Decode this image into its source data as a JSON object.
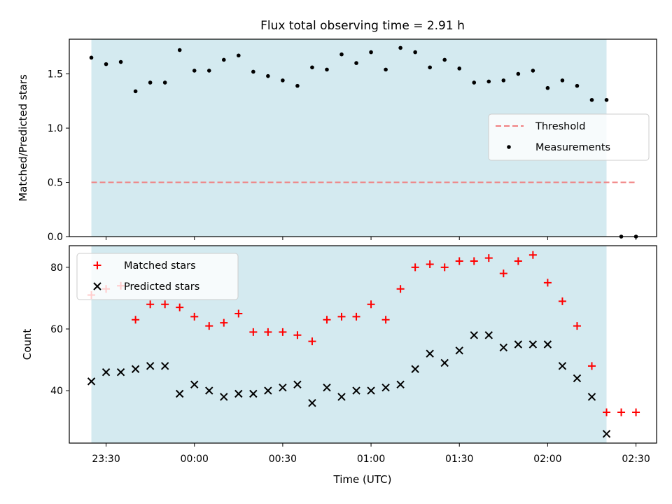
{
  "chart_data": [
    {
      "type": "scatter",
      "title": "Flux total observing time = 2.91 h",
      "xlabel": "",
      "ylabel": "Matched/Predicted stars",
      "ylim": [
        0,
        1.82
      ],
      "yticks": [
        "0.0",
        "0.5",
        "1.0",
        "1.5"
      ],
      "shaded_interval": [
        "23:25",
        "02:20"
      ],
      "shade_color": "#d4eaf0",
      "legend_position": "center-right",
      "series": [
        {
          "name": "Threshold",
          "style": "dashed-line",
          "color": "#f08080",
          "x": [
            "23:25",
            "02:30"
          ],
          "y": [
            0.5,
            0.5
          ]
        },
        {
          "name": "Measurements",
          "style": "dot",
          "color": "#000000",
          "x": [
            "23:25",
            "23:30",
            "23:35",
            "23:40",
            "23:45",
            "23:50",
            "23:55",
            "00:00",
            "00:05",
            "00:10",
            "00:15",
            "00:20",
            "00:25",
            "00:30",
            "00:35",
            "00:40",
            "00:45",
            "00:50",
            "00:55",
            "01:00",
            "01:05",
            "01:10",
            "01:15",
            "01:20",
            "01:25",
            "01:30",
            "01:35",
            "01:40",
            "01:45",
            "01:50",
            "01:55",
            "02:00",
            "02:05",
            "02:10",
            "02:15",
            "02:20",
            "02:25",
            "02:30"
          ],
          "y": [
            1.65,
            1.59,
            1.61,
            1.34,
            1.42,
            1.42,
            1.72,
            1.53,
            1.53,
            1.63,
            1.67,
            1.52,
            1.48,
            1.44,
            1.39,
            1.56,
            1.54,
            1.68,
            1.6,
            1.7,
            1.54,
            1.74,
            1.7,
            1.56,
            1.63,
            1.55,
            1.42,
            1.43,
            1.44,
            1.5,
            1.53,
            1.37,
            1.44,
            1.39,
            1.26,
            1.26,
            0.0,
            0.0
          ]
        }
      ]
    },
    {
      "type": "scatter",
      "title": "",
      "xlabel": "Time (UTC)",
      "ylabel": "Count",
      "ylim": [
        23,
        87
      ],
      "yticks": [
        "40",
        "60",
        "80"
      ],
      "xticks": [
        "23:30",
        "00:00",
        "00:30",
        "01:00",
        "01:30",
        "02:00",
        "02:30"
      ],
      "shaded_interval": [
        "23:25",
        "02:20"
      ],
      "shade_color": "#d4eaf0",
      "legend_position": "top-left",
      "series": [
        {
          "name": "Matched stars",
          "style": "plus",
          "color": "#ff0000",
          "x": [
            "23:25",
            "23:30",
            "23:35",
            "23:40",
            "23:45",
            "23:50",
            "23:55",
            "00:00",
            "00:05",
            "00:10",
            "00:15",
            "00:20",
            "00:25",
            "00:30",
            "00:35",
            "00:40",
            "00:45",
            "00:50",
            "00:55",
            "01:00",
            "01:05",
            "01:10",
            "01:15",
            "01:20",
            "01:25",
            "01:30",
            "01:35",
            "01:40",
            "01:45",
            "01:50",
            "01:55",
            "02:00",
            "02:05",
            "02:10",
            "02:15",
            "02:20",
            "02:25",
            "02:30"
          ],
          "y": [
            71,
            73,
            74,
            63,
            68,
            68,
            67,
            64,
            61,
            62,
            65,
            59,
            59,
            59,
            58,
            56,
            63,
            64,
            64,
            68,
            63,
            73,
            80,
            81,
            80,
            82,
            82,
            83,
            78,
            82,
            84,
            75,
            69,
            61,
            48,
            33,
            33,
            33
          ]
        },
        {
          "name": "Predicted stars",
          "style": "x",
          "color": "#000000",
          "x": [
            "23:25",
            "23:30",
            "23:35",
            "23:40",
            "23:45",
            "23:50",
            "23:55",
            "00:00",
            "00:05",
            "00:10",
            "00:15",
            "00:20",
            "00:25",
            "00:30",
            "00:35",
            "00:40",
            "00:45",
            "00:50",
            "00:55",
            "01:00",
            "01:05",
            "01:10",
            "01:15",
            "01:20",
            "01:25",
            "01:30",
            "01:35",
            "01:40",
            "01:45",
            "01:50",
            "01:55",
            "02:00",
            "02:05",
            "02:10",
            "02:15",
            "02:20"
          ],
          "y": [
            43,
            46,
            46,
            47,
            48,
            48,
            39,
            42,
            40,
            38,
            39,
            39,
            40,
            41,
            42,
            36,
            41,
            38,
            40,
            40,
            41,
            42,
            47,
            52,
            49,
            53,
            58,
            58,
            54,
            55,
            55,
            55,
            48,
            44,
            38,
            26
          ]
        }
      ]
    }
  ]
}
